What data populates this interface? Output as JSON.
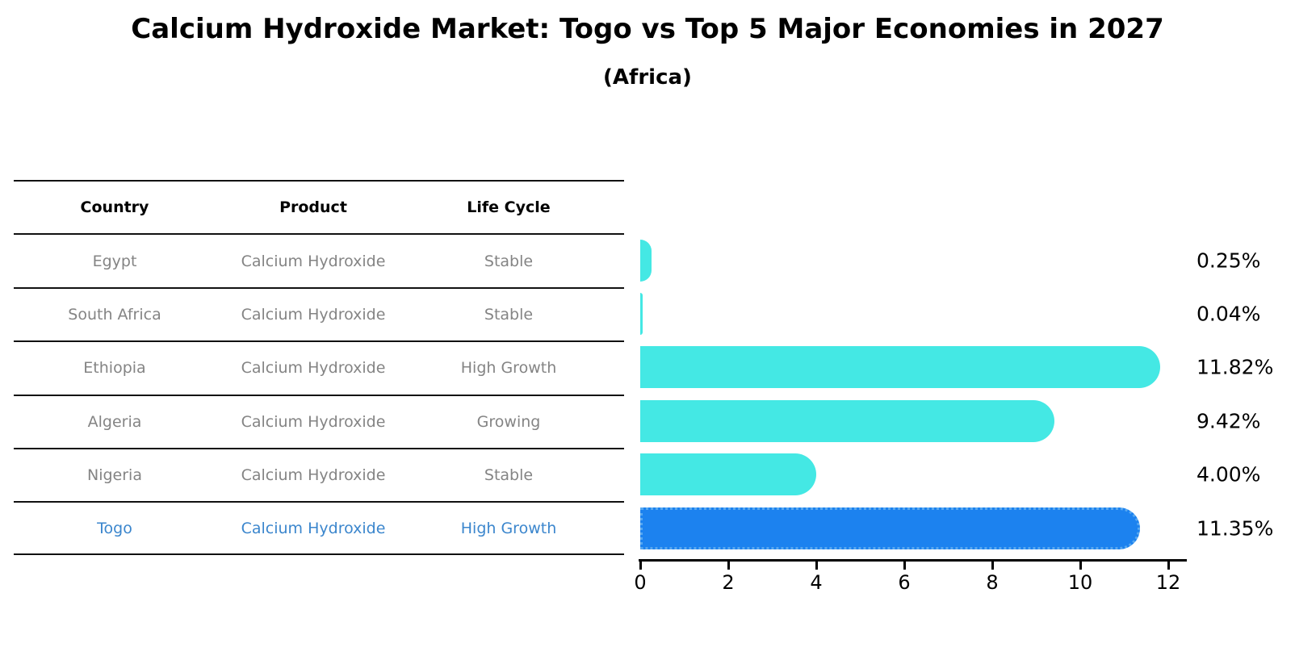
{
  "title": "Calcium Hydroxide Market: Togo vs Top 5 Major Economies in 2027",
  "subtitle": "(Africa)",
  "table": {
    "headers": [
      "Country",
      "Product",
      "Life Cycle"
    ],
    "rows": [
      {
        "country": "Egypt",
        "product": "Calcium Hydroxide",
        "life_cycle": "Stable",
        "highlight": false
      },
      {
        "country": "South Africa",
        "product": "Calcium Hydroxide",
        "life_cycle": "Stable",
        "highlight": false
      },
      {
        "country": "Ethiopia",
        "product": "Calcium Hydroxide",
        "life_cycle": "High Growth",
        "highlight": false
      },
      {
        "country": "Algeria",
        "product": "Calcium Hydroxide",
        "life_cycle": "Growing",
        "highlight": false
      },
      {
        "country": "Nigeria",
        "product": "Calcium Hydroxide",
        "life_cycle": "Stable",
        "highlight": false
      },
      {
        "country": "Togo",
        "product": "Calcium Hydroxide",
        "life_cycle": "High Growth",
        "highlight": true
      }
    ]
  },
  "chart_data": {
    "type": "bar",
    "orientation": "horizontal",
    "categories": [
      "Egypt",
      "South Africa",
      "Ethiopia",
      "Algeria",
      "Nigeria",
      "Togo"
    ],
    "values": [
      0.25,
      0.04,
      11.82,
      9.42,
      4.0,
      11.35
    ],
    "value_labels": [
      "0.25%",
      "0.04%",
      "11.82%",
      "9.42%",
      "4.00%",
      "11.35%"
    ],
    "xlabel": "",
    "ylabel": "",
    "xlim": [
      0,
      12.45
    ],
    "xticks": [
      0,
      2,
      4,
      6,
      8,
      10,
      12
    ],
    "grid": false,
    "legend": false,
    "bar_color": "#44E8E4",
    "highlight_color": "#1C82EF",
    "highlight_border_style": "dotted",
    "highlight_index": 5
  },
  "colors": {
    "title_text": "#000000",
    "table_header_text": "#000000",
    "table_row_text": "#848484",
    "highlight_text": "#3B86CD",
    "table_line": "#111111",
    "axis": "#000000",
    "value_label_text": "#000000"
  }
}
